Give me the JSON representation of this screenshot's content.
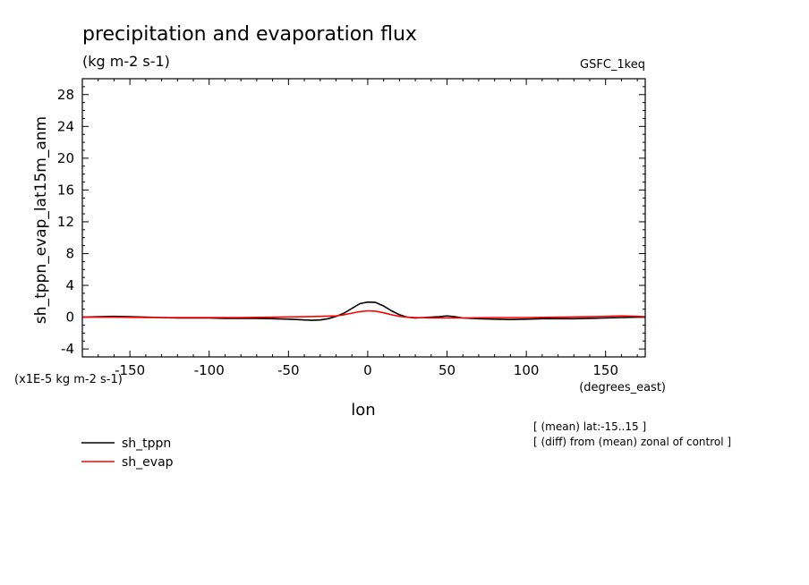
{
  "chart_data": {
    "type": "line",
    "title": "precipitation and evaporation flux",
    "subtitle": "(kg m-2 s-1)",
    "dataset_label": "GSFC_1keq",
    "ylabel": "sh_tppn_evap_lat15m_anm",
    "xlabel": "lon",
    "x_units": "(degrees_east)",
    "y_scale_note": "(x1E-5 kg m-2 s-1)",
    "xlim": [
      -180,
      175
    ],
    "ylim": [
      -5,
      30
    ],
    "x_ticks": [
      -150,
      -100,
      -50,
      0,
      50,
      100,
      150
    ],
    "x_tick_labels": [
      "-150",
      "-100",
      "-50",
      "0",
      "50",
      "100",
      "150"
    ],
    "y_ticks": [
      -4,
      0,
      4,
      8,
      12,
      16,
      20,
      24,
      28
    ],
    "y_tick_labels": [
      "-4",
      "0",
      "4",
      "8",
      "12",
      "16",
      "20",
      "24",
      "28"
    ],
    "legend_position": "bottom-left",
    "notes": [
      "[ (mean) lat:-15..15 ]",
      "[ (diff) from (mean) zonal of control ]"
    ],
    "series": [
      {
        "name": "sh_tppn",
        "color": "#000000",
        "x": [
          -180,
          -170,
          -160,
          -150,
          -140,
          -130,
          -120,
          -110,
          -100,
          -90,
          -80,
          -70,
          -60,
          -50,
          -45,
          -40,
          -35,
          -30,
          -25,
          -20,
          -15,
          -10,
          -5,
          0,
          5,
          10,
          15,
          20,
          25,
          30,
          35,
          40,
          45,
          50,
          55,
          60,
          70,
          80,
          90,
          100,
          110,
          120,
          130,
          140,
          150,
          160,
          170,
          175
        ],
        "y": [
          0.0,
          0.05,
          0.1,
          0.05,
          0.0,
          -0.05,
          -0.1,
          -0.1,
          -0.1,
          -0.15,
          -0.15,
          -0.15,
          -0.2,
          -0.25,
          -0.3,
          -0.35,
          -0.4,
          -0.35,
          -0.2,
          0.1,
          0.5,
          1.1,
          1.7,
          1.9,
          1.85,
          1.4,
          0.8,
          0.3,
          0.0,
          -0.1,
          -0.05,
          0.0,
          0.05,
          0.15,
          0.05,
          -0.1,
          -0.2,
          -0.25,
          -0.3,
          -0.25,
          -0.2,
          -0.2,
          -0.2,
          -0.15,
          -0.1,
          -0.05,
          0.0,
          0.0
        ]
      },
      {
        "name": "sh_evap",
        "color": "#ff0000",
        "x": [
          -180,
          -160,
          -140,
          -120,
          -100,
          -80,
          -60,
          -40,
          -30,
          -20,
          -15,
          -10,
          -5,
          0,
          5,
          10,
          15,
          20,
          25,
          30,
          40,
          50,
          60,
          80,
          100,
          120,
          140,
          150,
          160,
          170,
          175
        ],
        "y": [
          0.0,
          0.0,
          -0.05,
          -0.05,
          -0.05,
          -0.05,
          0.0,
          0.05,
          0.1,
          0.15,
          0.3,
          0.5,
          0.7,
          0.8,
          0.75,
          0.55,
          0.3,
          0.1,
          0.0,
          -0.05,
          -0.1,
          -0.1,
          -0.1,
          -0.05,
          -0.05,
          0.0,
          0.05,
          0.1,
          0.15,
          0.1,
          0.05
        ]
      }
    ]
  }
}
